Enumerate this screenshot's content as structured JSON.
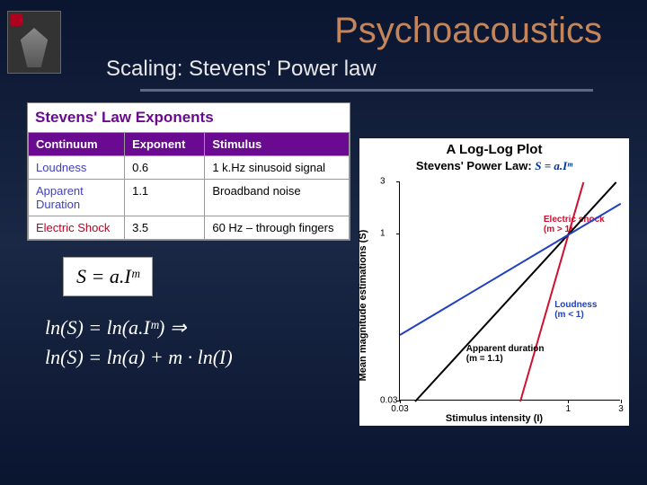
{
  "header": {
    "title": "Psychoacoustics",
    "subtitle": "Scaling: Stevens' Power law"
  },
  "table": {
    "title": "Stevens' Law Exponents",
    "columns": [
      "Continuum",
      "Exponent",
      "Stimulus"
    ],
    "rows": [
      {
        "continuum": "Loudness",
        "exponent": "0.6",
        "stimulus": "1 k.Hz sinusoid signal",
        "color": "#4040c0"
      },
      {
        "continuum": "Apparent Duration",
        "exponent": "1.1",
        "stimulus": "Broadband noise",
        "color": "#4040c0"
      },
      {
        "continuum": "Electric Shock",
        "exponent": "3.5",
        "stimulus": "60 Hz – through fingers",
        "color": "#c00020"
      }
    ]
  },
  "equations": {
    "boxed": "S = a.Iᵐ",
    "line1": "ln(S) = ln(a.Iᵐ) ⇒",
    "line2": "ln(S) = ln(a) + m · ln(I)"
  },
  "chart": {
    "type": "line-loglog",
    "title": "A Log-Log Plot",
    "subtitle_label": "Stevens' Power Law:",
    "subtitle_eq": "S = a.Iᵐ",
    "xlabel": "Stimulus intensity (I)",
    "ylabel": "Mean magnitude estimations (S)",
    "x_ticks": [
      0.03,
      1,
      3
    ],
    "y_ticks": [
      0.03,
      1,
      3
    ],
    "xlim": [
      0.03,
      3
    ],
    "ylim": [
      0.03,
      3
    ],
    "background_color": "#ffffff",
    "series": [
      {
        "name": "Electric shock",
        "m": 3.5,
        "color": "#d01030",
        "label": "Electric shock\n(m > 1)",
        "label_pos": [
          0.65,
          0.15
        ]
      },
      {
        "name": "Apparent duration",
        "m": 1.1,
        "color": "#000000",
        "label": "Apparent duration\n(m = 1.1)",
        "label_pos": [
          0.3,
          0.74
        ]
      },
      {
        "name": "Loudness",
        "m": 0.6,
        "color": "#2040c0",
        "label": "Loudness\n(m < 1)",
        "label_pos": [
          0.7,
          0.54
        ]
      }
    ],
    "line_width": 2
  },
  "colors": {
    "title": "#c4855a",
    "subtitle": "#e8e8e8",
    "table_header_bg": "#6a0a90",
    "bg_gradient": [
      "#0a1530",
      "#1a2845"
    ]
  }
}
